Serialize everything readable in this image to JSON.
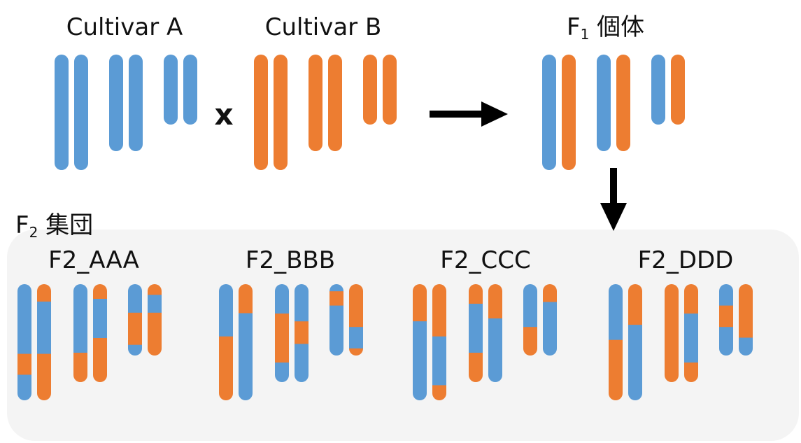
{
  "colors": {
    "cultivar_a": "#5b9bd5",
    "cultivar_b": "#ed7d31",
    "panel": "#f4f4f4",
    "arrow": "#000000"
  },
  "parents": {
    "a_label": "Cultivar A",
    "b_label": "Cultivar B",
    "cross_symbol": "x"
  },
  "f1": {
    "label_main": "F",
    "label_sub": "1",
    "label_rest": " 個体"
  },
  "f2": {
    "label_main": "F",
    "label_sub": "2",
    "label_rest": " 集団",
    "individuals": [
      {
        "label": "F2_AAA",
        "pairs": [
          {
            "left": [
              {
                "c": "A",
                "f": 0.6
              },
              {
                "c": "B",
                "f": 0.18
              },
              {
                "c": "A",
                "f": 0.22
              }
            ],
            "right": [
              {
                "c": "B",
                "f": 0.15
              },
              {
                "c": "A",
                "f": 0.45
              },
              {
                "c": "B",
                "f": 0.4
              }
            ]
          },
          {
            "left": [
              {
                "c": "A",
                "f": 0.7
              },
              {
                "c": "B",
                "f": 0.3
              }
            ],
            "right": [
              {
                "c": "B",
                "f": 0.15
              },
              {
                "c": "A",
                "f": 0.4
              },
              {
                "c": "B",
                "f": 0.45
              }
            ]
          },
          {
            "left": [
              {
                "c": "A",
                "f": 0.4
              },
              {
                "c": "B",
                "f": 0.45
              },
              {
                "c": "A",
                "f": 0.15
              }
            ],
            "right": [
              {
                "c": "B",
                "f": 0.15
              },
              {
                "c": "A",
                "f": 0.25
              },
              {
                "c": "B",
                "f": 0.6
              }
            ]
          }
        ]
      },
      {
        "label": "F2_BBB",
        "pairs": [
          {
            "left": [
              {
                "c": "A",
                "f": 0.45
              },
              {
                "c": "B",
                "f": 0.55
              }
            ],
            "right": [
              {
                "c": "B",
                "f": 0.25
              },
              {
                "c": "A",
                "f": 0.75
              }
            ]
          },
          {
            "left": [
              {
                "c": "A",
                "f": 0.3
              },
              {
                "c": "B",
                "f": 0.5
              },
              {
                "c": "A",
                "f": 0.2
              }
            ],
            "right": [
              {
                "c": "A",
                "f": 0.38
              },
              {
                "c": "B",
                "f": 0.23
              },
              {
                "c": "A",
                "f": 0.39
              }
            ]
          },
          {
            "left": [
              {
                "c": "A",
                "f": 0.1
              },
              {
                "c": "B",
                "f": 0.2
              },
              {
                "c": "A",
                "f": 0.7
              }
            ],
            "right": [
              {
                "c": "B",
                "f": 0.6
              },
              {
                "c": "A",
                "f": 0.3
              },
              {
                "c": "B",
                "f": 0.1
              }
            ]
          }
        ]
      },
      {
        "label": "F2_CCC",
        "pairs": [
          {
            "left": [
              {
                "c": "B",
                "f": 0.32
              },
              {
                "c": "A",
                "f": 0.68
              }
            ],
            "right": [
              {
                "c": "B",
                "f": 0.45
              },
              {
                "c": "A",
                "f": 0.42
              },
              {
                "c": "B",
                "f": 0.13
              }
            ]
          },
          {
            "left": [
              {
                "c": "B",
                "f": 0.2
              },
              {
                "c": "A",
                "f": 0.5
              },
              {
                "c": "B",
                "f": 0.3
              }
            ],
            "right": [
              {
                "c": "B",
                "f": 0.35
              },
              {
                "c": "A",
                "f": 0.65
              }
            ]
          },
          {
            "left": [
              {
                "c": "A",
                "f": 0.6
              },
              {
                "c": "B",
                "f": 0.4
              }
            ],
            "right": [
              {
                "c": "B",
                "f": 0.25
              },
              {
                "c": "A",
                "f": 0.75
              }
            ]
          }
        ]
      },
      {
        "label": "F2_DDD",
        "pairs": [
          {
            "left": [
              {
                "c": "A",
                "f": 0.48
              },
              {
                "c": "B",
                "f": 0.52
              }
            ],
            "right": [
              {
                "c": "B",
                "f": 0.35
              },
              {
                "c": "A",
                "f": 0.65
              }
            ]
          },
          {
            "left": [
              {
                "c": "B",
                "f": 1.0
              }
            ],
            "right": [
              {
                "c": "B",
                "f": 0.3
              },
              {
                "c": "A",
                "f": 0.5
              },
              {
                "c": "B",
                "f": 0.2
              }
            ]
          },
          {
            "left": [
              {
                "c": "A",
                "f": 0.3
              },
              {
                "c": "B",
                "f": 0.3
              },
              {
                "c": "A",
                "f": 0.4
              }
            ],
            "right": [
              {
                "c": "B",
                "f": 0.75
              },
              {
                "c": "A",
                "f": 0.25
              }
            ]
          }
        ]
      }
    ]
  }
}
